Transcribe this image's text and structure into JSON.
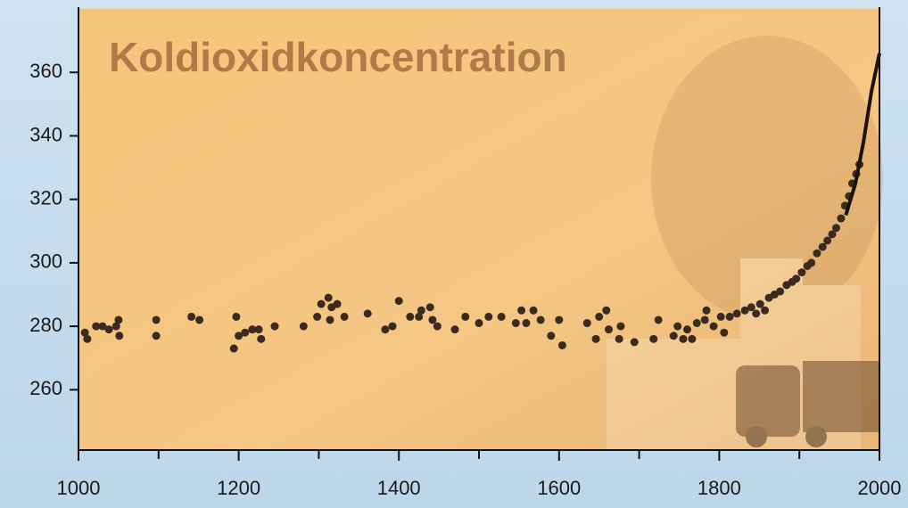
{
  "chart_data": {
    "type": "scatter",
    "title": "Koldioxidkoncentration",
    "xlim": [
      1000,
      2000
    ],
    "xticks": [
      1000,
      1200,
      1400,
      1600,
      1800,
      2000
    ],
    "xminorticks": [
      1100,
      1300,
      1500,
      1700,
      1900
    ],
    "ylim": [
      241,
      380
    ],
    "yticks": [
      260,
      280,
      300,
      320,
      340,
      360
    ],
    "series": [
      {
        "type": "scatter",
        "color": "#3b2a1e",
        "x": [
          1008,
          1011,
          1022,
          1030,
          1038,
          1047,
          1050,
          1051,
          1097,
          1097,
          1141,
          1151,
          1194,
          1197,
          1200,
          1208,
          1217,
          1225,
          1228,
          1245,
          1281,
          1298,
          1303,
          1312,
          1316,
          1323,
          1314,
          1332,
          1361,
          1383,
          1392,
          1400,
          1414,
          1425,
          1428,
          1439,
          1442,
          1448,
          1470,
          1483,
          1500,
          1512,
          1528,
          1546,
          1553,
          1559,
          1568,
          1577,
          1590,
          1600,
          1604,
          1635,
          1646,
          1650,
          1659,
          1662,
          1675,
          1677,
          1694,
          1718,
          1724,
          1743,
          1748,
          1755,
          1760,
          1766,
          1772,
          1782,
          1784,
          1793,
          1802,
          1806,
          1813,
          1822,
          1832,
          1840,
          1846,
          1851,
          1857,
          1862,
          1869,
          1876,
          1884,
          1891,
          1896,
          1903,
          1910,
          1915,
          1922,
          1929,
          1935,
          1941,
          1946,
          1952,
          1957,
          1962,
          1966,
          1971,
          1975
        ],
        "values": [
          278,
          276,
          280,
          280,
          279,
          280,
          282,
          277,
          282,
          277,
          283,
          282,
          273,
          283,
          277,
          278,
          279,
          279,
          276,
          280,
          280,
          283,
          287,
          289,
          286,
          287,
          282,
          283,
          284,
          279,
          280,
          288,
          283,
          283,
          285,
          286,
          282,
          280,
          279,
          283,
          281,
          283,
          283,
          281,
          285,
          281,
          285,
          282,
          277,
          282,
          274,
          281,
          276,
          283,
          285,
          279,
          276,
          280,
          275,
          276,
          282,
          277,
          280,
          276,
          279,
          276,
          281,
          282,
          285,
          280,
          283,
          278,
          283,
          284,
          285,
          286,
          284,
          287,
          285,
          289,
          290,
          291,
          293,
          294,
          295,
          297,
          299,
          300,
          303,
          305,
          307,
          309,
          311,
          314,
          318,
          321,
          325,
          328,
          331
        ]
      },
      {
        "type": "line",
        "color": "#1a120c",
        "x": [
          1958,
          1970,
          1980,
          1990,
          2000
        ],
        "values": [
          315,
          325,
          338,
          354,
          366
        ]
      }
    ]
  }
}
